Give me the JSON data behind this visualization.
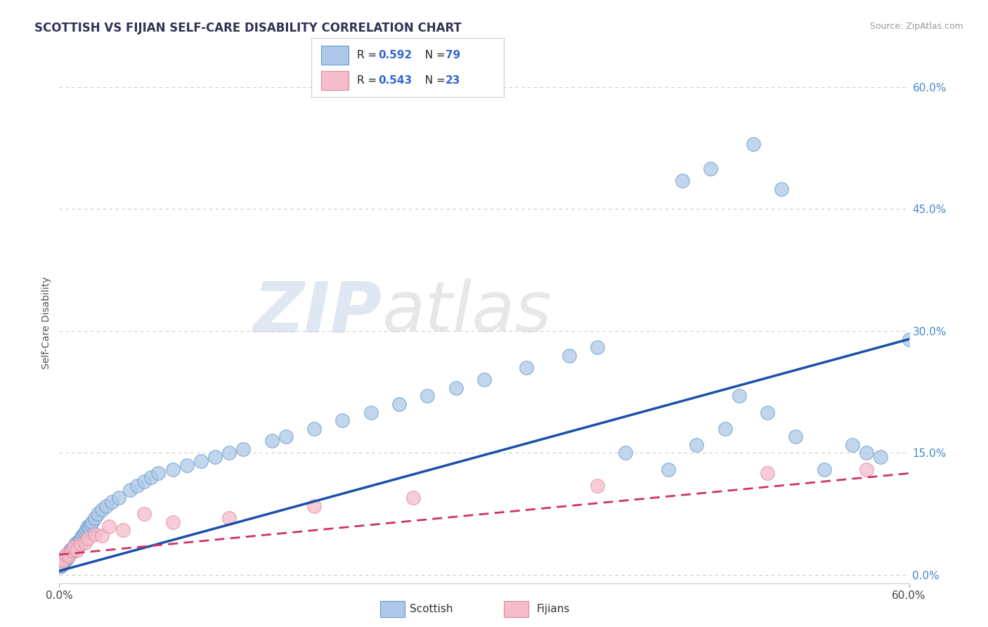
{
  "title": "SCOTTISH VS FIJIAN SELF-CARE DISABILITY CORRELATION CHART",
  "source": "Source: ZipAtlas.com",
  "ylabel": "Self-Care Disability",
  "ytick_labels": [
    "0.0%",
    "15.0%",
    "30.0%",
    "45.0%",
    "60.0%"
  ],
  "ytick_values": [
    0.0,
    15.0,
    30.0,
    45.0,
    60.0
  ],
  "xmin": 0.0,
  "xmax": 60.0,
  "ymin": -1.0,
  "ymax": 63.0,
  "legend_R_scottish": "R = 0.592",
  "legend_N_scottish": "N = 79",
  "legend_R_fijian": "R = 0.543",
  "legend_N_fijian": "N = 23",
  "scottish_color": "#adc8e8",
  "scottish_edge": "#6699cc",
  "fijian_color": "#f5bccb",
  "fijian_edge": "#dd8899",
  "trend_scottish_color": "#1a4faa",
  "trend_fijian_color": "#cc3366",
  "watermark_zip": "ZIP",
  "watermark_atlas": "atlas",
  "scottish_x": [
    0.1,
    0.15,
    0.2,
    0.25,
    0.3,
    0.35,
    0.4,
    0.45,
    0.5,
    0.55,
    0.6,
    0.65,
    0.7,
    0.75,
    0.8,
    0.85,
    0.9,
    0.95,
    1.0,
    1.05,
    1.1,
    1.15,
    1.2,
    1.3,
    1.4,
    1.5,
    1.6,
    1.7,
    1.8,
    1.9,
    2.0,
    2.1,
    2.2,
    2.3,
    2.5,
    2.7,
    3.0,
    3.3,
    3.7,
    4.2,
    5.0,
    5.5,
    6.0,
    6.5,
    7.0,
    8.0,
    9.0,
    10.0,
    11.0,
    12.0,
    13.0,
    15.0,
    16.0,
    18.0,
    20.0,
    22.0,
    24.0,
    26.0,
    28.0,
    30.0,
    33.0,
    36.0,
    38.0,
    40.0,
    43.0,
    45.0,
    47.0,
    48.0,
    50.0,
    52.0,
    54.0,
    56.0,
    57.0,
    58.0,
    60.0,
    44.0,
    46.0,
    49.0,
    51.0
  ],
  "scottish_y": [
    1.0,
    1.2,
    1.5,
    1.3,
    1.8,
    1.6,
    2.0,
    1.8,
    2.2,
    2.0,
    2.5,
    2.3,
    2.8,
    2.6,
    3.0,
    2.8,
    3.2,
    3.0,
    3.5,
    3.2,
    3.8,
    3.5,
    4.0,
    3.8,
    4.2,
    4.5,
    4.8,
    5.0,
    5.3,
    5.6,
    6.0,
    5.8,
    6.2,
    6.5,
    7.0,
    7.5,
    8.0,
    8.5,
    9.0,
    9.5,
    10.5,
    11.0,
    11.5,
    12.0,
    12.5,
    13.0,
    13.5,
    14.0,
    14.5,
    15.0,
    15.5,
    16.5,
    17.0,
    18.0,
    19.0,
    20.0,
    21.0,
    22.0,
    23.0,
    24.0,
    25.5,
    27.0,
    28.0,
    15.0,
    13.0,
    16.0,
    18.0,
    22.0,
    20.0,
    17.0,
    13.0,
    16.0,
    15.0,
    14.5,
    29.0,
    48.5,
    50.0,
    53.0,
    47.5
  ],
  "fijian_x": [
    0.1,
    0.2,
    0.3,
    0.5,
    0.7,
    0.9,
    1.0,
    1.2,
    1.5,
    1.8,
    2.0,
    2.5,
    3.0,
    3.5,
    4.5,
    6.0,
    8.0,
    12.0,
    18.0,
    25.0,
    38.0,
    50.0,
    57.0
  ],
  "fijian_y": [
    1.5,
    2.0,
    1.8,
    2.5,
    2.3,
    3.0,
    3.5,
    3.0,
    3.8,
    4.0,
    4.5,
    5.0,
    4.8,
    6.0,
    5.5,
    7.5,
    6.5,
    7.0,
    8.5,
    9.5,
    11.0,
    12.5,
    13.0
  ],
  "sc_trend_x0": 0.0,
  "sc_trend_y0": 0.5,
  "sc_trend_x1": 60.0,
  "sc_trend_y1": 29.0,
  "fj_trend_x0": 0.0,
  "fj_trend_y0": 2.5,
  "fj_trend_x1": 60.0,
  "fj_trend_y1": 12.5
}
